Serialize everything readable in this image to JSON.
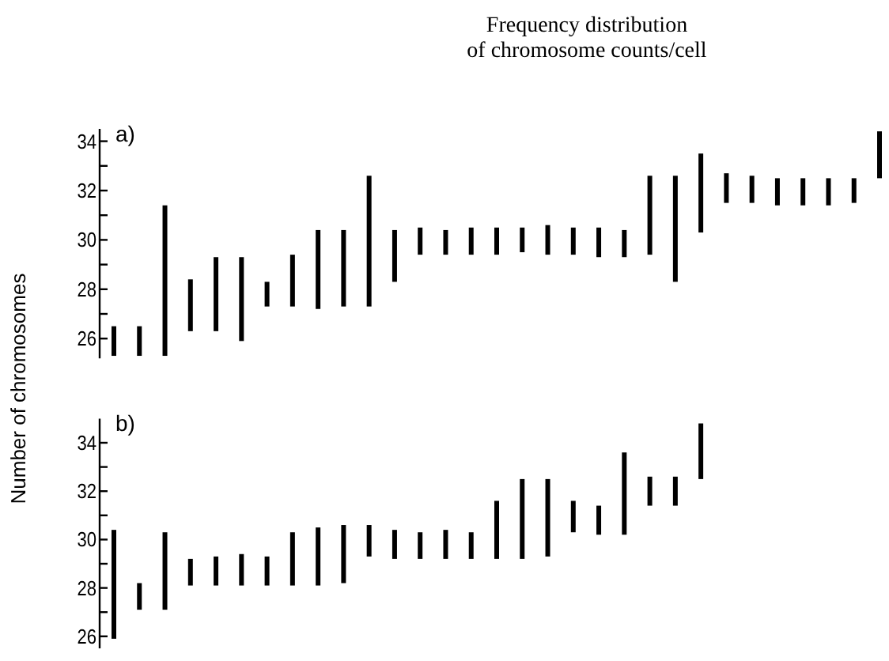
{
  "chart_data": [
    {
      "type": "bar",
      "title": "Frequency distribution\nof chromosome counts/cell",
      "ylabel": "Number of chromosomes",
      "annotations": [
        "a)"
      ],
      "tick_labels": "y",
      "color": "#000000",
      "categories": [
        null,
        null,
        null,
        null,
        null,
        null,
        null,
        null,
        null,
        null,
        null,
        null,
        null,
        null,
        null,
        null,
        null,
        null,
        null,
        null,
        null,
        null,
        null,
        null,
        null,
        null,
        null,
        null,
        null,
        null,
        null
      ],
      "base": [
        25.3,
        25.3,
        25.3,
        26.3,
        26.3,
        25.9,
        27.3,
        27.3,
        27.2,
        27.3,
        27.3,
        28.3,
        29.4,
        29.4,
        29.4,
        29.4,
        29.5,
        29.4,
        29.4,
        29.3,
        29.3,
        29.4,
        28.3,
        30.3,
        31.5,
        31.5,
        31.4,
        31.4,
        31.4,
        31.5,
        32.5
      ],
      "values": [
        1.2,
        1.2,
        6.1,
        2.1,
        3.0,
        3.4,
        1.0,
        2.1,
        3.2,
        3.1,
        5.3,
        2.1,
        1.1,
        1.0,
        1.1,
        1.1,
        1.0,
        1.2,
        1.1,
        1.2,
        1.1,
        3.2,
        4.3,
        3.2,
        1.2,
        1.1,
        1.1,
        1.1,
        1.1,
        1.0,
        1.9
      ],
      "ylim": [
        25.2,
        34.5
      ],
      "yticks": [
        26,
        {
          "value": 27,
          "label": null
        },
        28,
        {
          "value": 29,
          "label": null
        },
        30,
        {
          "value": 31,
          "label": null
        },
        32,
        {
          "value": 33,
          "label": null
        },
        34
      ]
    },
    {
      "type": "bar",
      "annotations": [
        "b)"
      ],
      "tick_labels": "y",
      "color": "#000000",
      "categories": [
        null,
        null,
        null,
        null,
        null,
        null,
        null,
        null,
        null,
        null,
        null,
        null,
        null,
        null,
        null,
        null,
        null,
        null,
        null,
        null,
        null,
        null,
        null,
        null,
        null,
        null,
        null,
        null,
        null,
        null,
        null
      ],
      "base": [
        25.9,
        27.1,
        27.1,
        28.1,
        28.1,
        28.1,
        28.1,
        28.1,
        28.1,
        28.2,
        29.3,
        29.2,
        29.2,
        29.2,
        29.2,
        29.2,
        29.2,
        29.3,
        30.3,
        30.2,
        30.2,
        31.4,
        31.4,
        32.5,
        null,
        null,
        null,
        null,
        null,
        null,
        null
      ],
      "values": [
        4.5,
        1.1,
        3.2,
        1.1,
        1.2,
        1.3,
        1.2,
        2.2,
        2.4,
        2.4,
        1.3,
        1.2,
        1.1,
        1.2,
        1.1,
        2.4,
        3.3,
        3.2,
        1.3,
        1.2,
        3.4,
        1.2,
        1.2,
        2.3,
        null,
        null,
        null,
        null,
        null,
        null,
        null
      ],
      "ylim": [
        25.5,
        35
      ],
      "yticks": [
        26,
        {
          "value": 27,
          "label": null
        },
        28,
        {
          "value": 29,
          "label": null
        },
        30,
        {
          "value": 31,
          "label": null
        },
        32,
        {
          "value": 33,
          "label": null
        },
        34
      ]
    }
  ]
}
